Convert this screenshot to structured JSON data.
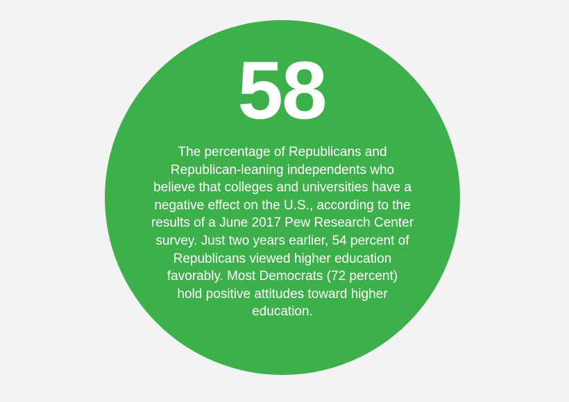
{
  "stat": {
    "number": "58",
    "lines": [
      "The percentage of Republicans and",
      "Republican-leaning independents who",
      "believe that colleges and universities have a",
      "negative effect on the U.S., according to the",
      "results of a June 2017 Pew Research Center",
      "survey. Just two years earlier, 54 percent of",
      "Republicans viewed higher education",
      "favorably. Most Democrats (72 percent)",
      "hold positive attitudes toward higher",
      "education."
    ]
  },
  "colors": {
    "circle": "#3db04b",
    "text": "#ffffff",
    "background": "#f3f3f3"
  }
}
